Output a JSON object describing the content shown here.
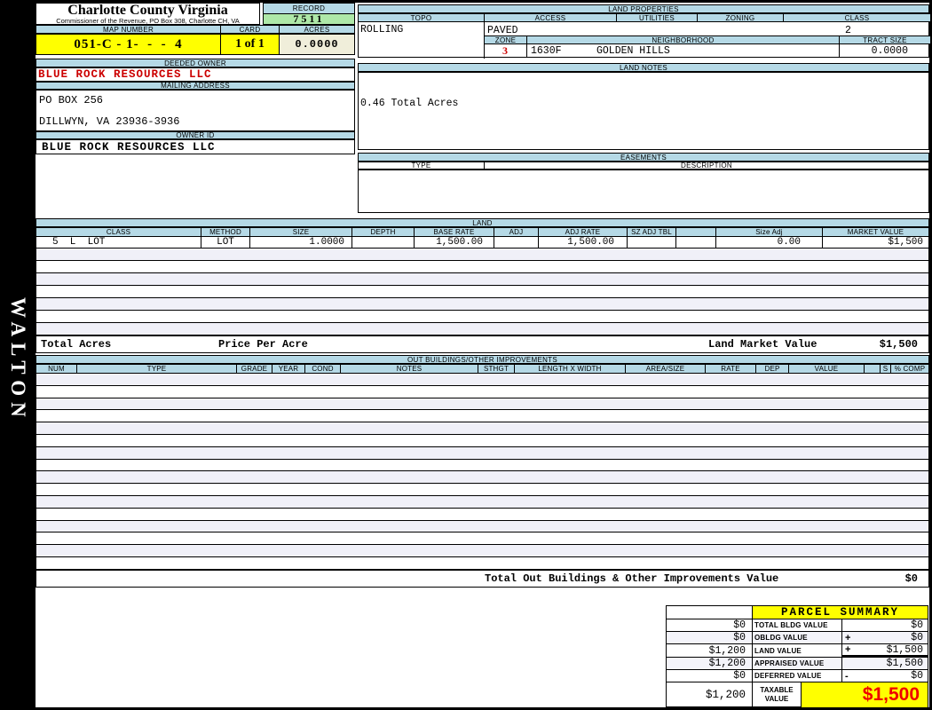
{
  "page": {
    "watermark": "WALTON"
  },
  "header": {
    "title": "Charlotte County Virginia",
    "subtitle": "Commissioner of the Revenue, PO Box 308, Charlotte CH, VA",
    "record_label": "RECORD",
    "record_value": "7511",
    "map_number_label": "MAP NUMBER",
    "map_number_value": "051-C - 1-  -  -  4",
    "card_label": "CARD",
    "card_value": "1 of 1",
    "acres_label": "ACRES",
    "acres_value": "0.0000"
  },
  "owner": {
    "deeded_owner_label": "DEEDED OWNER",
    "deeded_owner": "BLUE ROCK RESOURCES LLC",
    "mailing_address_label": "MAILING ADDRESS",
    "address_line1": "PO BOX 256",
    "address_line2": "DILLWYN, VA 23936-3936",
    "owner_id_label": "OWNER ID",
    "owner_id": "BLUE ROCK RESOURCES LLC"
  },
  "land_properties": {
    "title": "LAND PROPERTIES",
    "topo_label": "TOPO",
    "topo": "ROLLING",
    "access_label": "ACCESS",
    "access": "PAVED",
    "utilities_label": "UTILITIES",
    "utilities": "",
    "zoning_label": "ZONING",
    "zoning": "",
    "class_label": "CLASS",
    "class": "2",
    "zone_label": "ZONE",
    "zone": "3",
    "neighborhood_label": "NEIGHBORHOOD",
    "neighborhood_code": "1630F",
    "neighborhood_name": "GOLDEN HILLS",
    "tract_size_label": "TRACT SIZE",
    "tract_size": "0.0000"
  },
  "land_notes": {
    "title": "LAND NOTES",
    "note": "0.46 Total Acres"
  },
  "easements": {
    "title": "EASEMENTS",
    "type_label": "TYPE",
    "description_label": "DESCRIPTION"
  },
  "land_table": {
    "title": "LAND",
    "headers": [
      "CLASS",
      "METHOD",
      "SIZE",
      "DEPTH",
      "BASE RATE",
      "ADJ",
      "ADJ RATE",
      "SZ ADJ TBL",
      "",
      "Size Adj",
      "MARKET VALUE"
    ],
    "row": {
      "class": "5  L  LOT",
      "method": "LOT",
      "size": "1.0000",
      "depth": "",
      "base_rate": "1,500.00",
      "adj": "",
      "adj_rate": "1,500.00",
      "sz_adj_tbl": "",
      "size_adj": "0.00",
      "market_value": "$1,500"
    },
    "footer": {
      "total_acres_label": "Total Acres",
      "price_per_acre_label": "Price Per Acre",
      "land_market_value_label": "Land Market Value",
      "land_market_value": "$1,500"
    }
  },
  "out_buildings": {
    "title": "OUT BUILDINGS/OTHER IMPROVEMENTS",
    "headers": [
      "NUM",
      "TYPE",
      "GRADE",
      "YEAR",
      "COND",
      "NOTES",
      "STHGT",
      "LENGTH X WIDTH",
      "AREA/SIZE",
      "RATE",
      "DEP",
      "VALUE",
      "",
      "S",
      "% COMP"
    ],
    "total_label": "Total Out Buildings & Other Improvements Value",
    "total_value": "$0"
  },
  "parcel_summary": {
    "title": "PARCEL SUMMARY",
    "rows": [
      {
        "prior": "$0",
        "label": "TOTAL BLDG VALUE",
        "op": "",
        "value": "$0"
      },
      {
        "prior": "$0",
        "label": "OBLDG VALUE",
        "op": "+",
        "value": "$0"
      },
      {
        "prior": "$1,200",
        "label": "LAND VALUE",
        "op": "+",
        "value": "$1,500"
      },
      {
        "prior": "$1,200",
        "label": "APPRAISED VALUE",
        "op": "",
        "value": "$1,500"
      },
      {
        "prior": "$0",
        "label": "DEFERRED VALUE",
        "op": "-",
        "value": "$0"
      },
      {
        "prior": "$1,200",
        "label": "TAXABLE VALUE",
        "op": "",
        "value": "$1,500"
      }
    ]
  },
  "colors": {
    "header_blue": "#b5d9e6",
    "record_green": "#aee8a8",
    "highlight_yellow": "#ffff00",
    "cream": "#f0eeda",
    "accent_red": "#cc0000",
    "value_red": "#ee0000",
    "row_alt": "#f0f0f8"
  }
}
